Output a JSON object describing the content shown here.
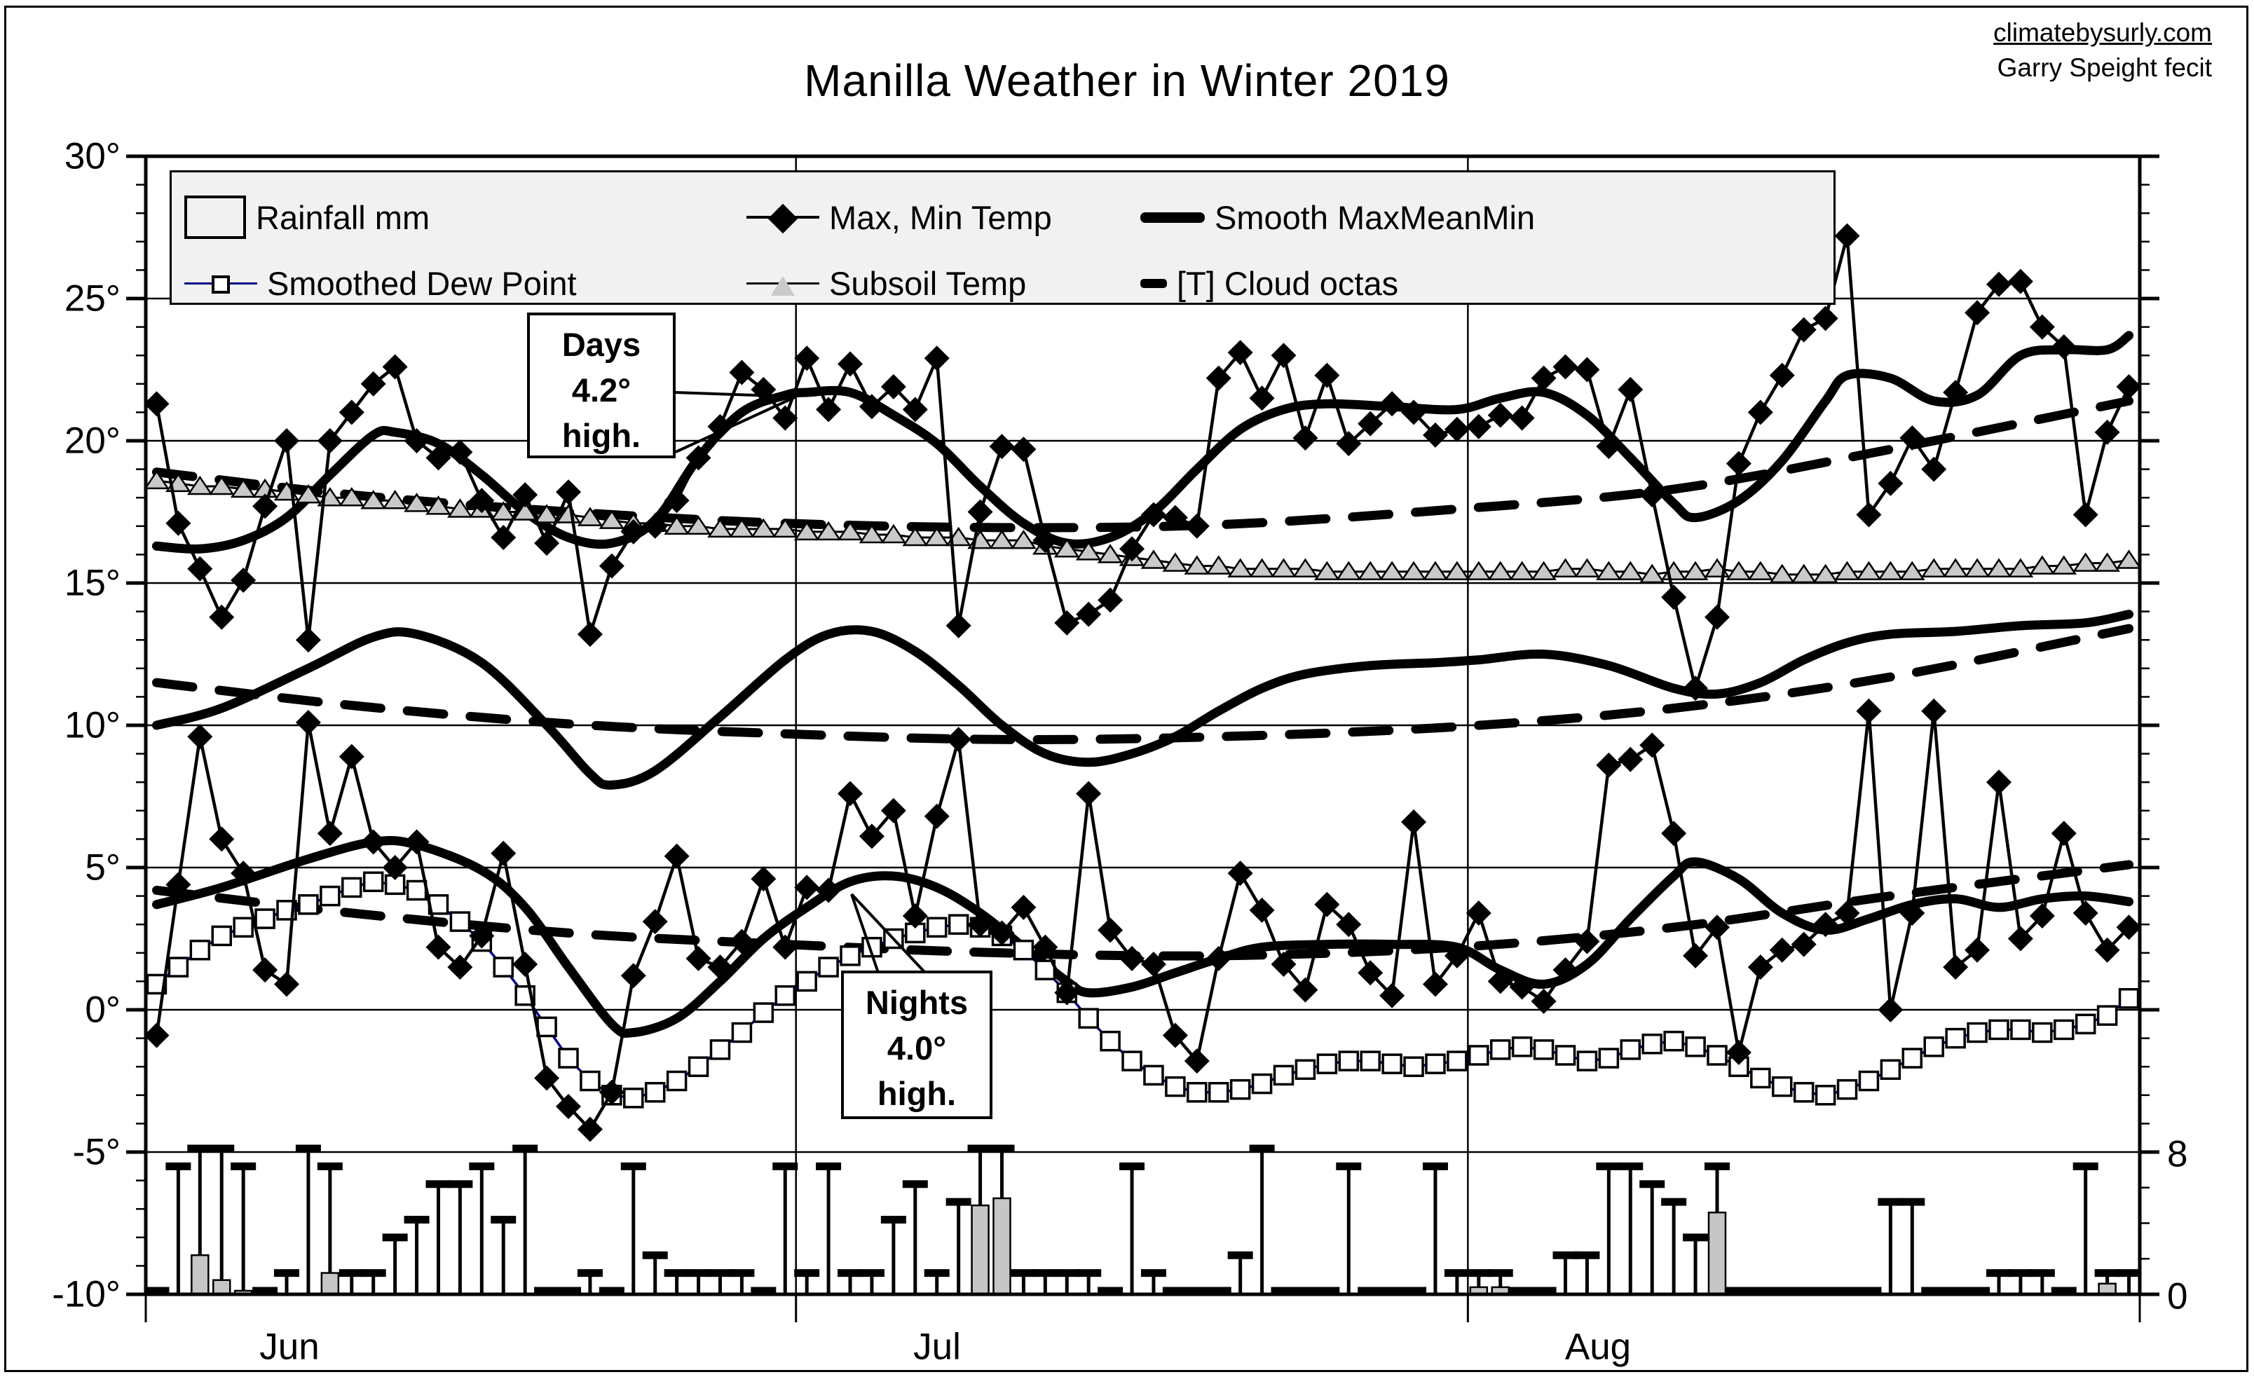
{
  "header": {
    "title": "Manilla Weather in Winter 2019",
    "site": "climatebysurly.com",
    "credit": "Garry Speight fecit"
  },
  "legend": {
    "bg_color": "#f1f1f1",
    "items": [
      {
        "label": "Rainfall mm",
        "marker": "rain-bar-swatch"
      },
      {
        "label": "Max, Min Temp",
        "marker": "diamond-on-line"
      },
      {
        "label": "Smooth  MaxMeanMin",
        "marker": "thick-line"
      },
      {
        "label": "Smoothed Dew Point",
        "marker": "open-square-on-line"
      },
      {
        "label": "Subsoil Temp",
        "marker": "triangle-on-line"
      },
      {
        "label": "[T] Cloud octas",
        "marker": "short-dash"
      }
    ]
  },
  "annotations": {
    "days": {
      "line1": "Days",
      "line2": "4.2°",
      "line3": "high."
    },
    "nights": {
      "line1": "Nights",
      "line2": "4.0°",
      "line3": "high."
    }
  },
  "colors": {
    "ink": "#000000",
    "rain_fill": "#c6c6c6",
    "subsoil_fill": "#c9c9c9",
    "dew_line": "#00008b",
    "legend_bg": "#f1f1f1"
  },
  "chart_data": {
    "type": "line",
    "title": "Manilla Weather in Winter 2019",
    "x_months": [
      "Jun",
      "Jul",
      "Aug"
    ],
    "days_per_month": [
      30,
      31,
      31
    ],
    "y_axis": {
      "unit": "°",
      "min": -10,
      "max": 30,
      "step": 5,
      "tick_labels": [
        "30°",
        "25°",
        "20°",
        "15°",
        "10°",
        "5°",
        "0°",
        "-5°",
        "-10°"
      ]
    },
    "right_axis": {
      "name": "cloud octas",
      "min": 0,
      "max": 8,
      "tick_labels": [
        "8",
        "0"
      ],
      "maps_to_left": {
        "octa0_deg": -10,
        "octa8_deg": -5
      }
    },
    "grid": "horizontal 5-deg lines, vertical month boundaries",
    "legend_position": "top inside plot",
    "series": {
      "max_temp": [
        21.3,
        17.1,
        15.5,
        13.8,
        15.1,
        17.7,
        20.0,
        13.0,
        20.0,
        21.0,
        22.0,
        22.6,
        20.0,
        19.4,
        19.6,
        17.9,
        16.6,
        18.1,
        16.4,
        18.2,
        13.2,
        15.6,
        16.8,
        17.0,
        17.9,
        19.4,
        20.5,
        22.4,
        21.8,
        20.8,
        22.9,
        21.1,
        22.7,
        21.2,
        21.9,
        21.1,
        22.9,
        13.5,
        17.5,
        19.8,
        19.7,
        16.5,
        13.6,
        13.9,
        14.4,
        16.2,
        17.4,
        17.3,
        17.0,
        22.2,
        23.1,
        21.5,
        23.0,
        20.1,
        22.3,
        19.9,
        20.6,
        21.3,
        21.0,
        20.2,
        20.4,
        20.5,
        20.9,
        20.8,
        22.2,
        22.6,
        22.5,
        19.8,
        21.8,
        18.1,
        14.5,
        11.3,
        13.8,
        19.2,
        21.0,
        22.3,
        23.9,
        24.3,
        27.2,
        17.4,
        18.5,
        20.1,
        19.0,
        21.7,
        24.5,
        25.5,
        25.6,
        24.0,
        23.3,
        17.4,
        20.3,
        21.9
      ],
      "min_temp": [
        -0.9,
        4.4,
        9.6,
        6.0,
        4.8,
        1.4,
        0.9,
        10.1,
        6.2,
        8.9,
        5.9,
        5.0,
        5.9,
        2.2,
        1.5,
        2.6,
        5.5,
        1.6,
        -2.4,
        -3.4,
        -4.2,
        -2.9,
        1.2,
        3.1,
        5.4,
        1.8,
        1.5,
        2.4,
        4.6,
        2.2,
        4.3,
        4.2,
        7.6,
        6.1,
        7.0,
        3.3,
        6.8,
        9.5,
        3.0,
        2.7,
        3.6,
        2.2,
        0.6,
        7.6,
        2.8,
        1.8,
        1.6,
        -0.9,
        -1.8,
        1.8,
        4.8,
        3.5,
        1.6,
        0.7,
        3.7,
        3.0,
        1.3,
        0.5,
        6.6,
        0.9,
        1.9,
        3.4,
        1.0,
        0.8,
        0.3,
        1.4,
        2.4,
        8.6,
        8.8,
        9.3,
        6.2,
        1.9,
        2.9,
        -1.5,
        1.5,
        2.1,
        2.3,
        3.0,
        3.4,
        10.5,
        0.0,
        3.4,
        10.5,
        1.5,
        2.1,
        8.0,
        2.5,
        3.3,
        6.2,
        3.4,
        2.1,
        2.9
      ],
      "smoothed_dew_point": [
        0.9,
        1.5,
        2.1,
        2.6,
        2.9,
        3.2,
        3.5,
        3.7,
        4.0,
        4.3,
        4.5,
        4.4,
        4.2,
        3.7,
        3.1,
        2.4,
        1.5,
        0.5,
        -0.6,
        -1.7,
        -2.5,
        -3.0,
        -3.1,
        -2.9,
        -2.5,
        -2.0,
        -1.4,
        -0.8,
        -0.1,
        0.5,
        1.0,
        1.5,
        1.9,
        2.2,
        2.5,
        2.7,
        2.9,
        3.0,
        2.9,
        2.6,
        2.1,
        1.4,
        0.6,
        -0.3,
        -1.1,
        -1.8,
        -2.3,
        -2.7,
        -2.9,
        -2.9,
        -2.8,
        -2.6,
        -2.3,
        -2.1,
        -1.9,
        -1.8,
        -1.8,
        -1.9,
        -2.0,
        -1.9,
        -1.8,
        -1.6,
        -1.4,
        -1.3,
        -1.4,
        -1.6,
        -1.8,
        -1.7,
        -1.4,
        -1.2,
        -1.1,
        -1.3,
        -1.6,
        -2.0,
        -2.4,
        -2.7,
        -2.9,
        -3.0,
        -2.8,
        -2.5,
        -2.1,
        -1.7,
        -1.3,
        -1.0,
        -0.8,
        -0.7,
        -0.7,
        -0.8,
        -0.7,
        -0.5,
        -0.2,
        0.4
      ],
      "subsoil_temp": [
        18.6,
        18.5,
        18.4,
        18.4,
        18.3,
        18.3,
        18.2,
        18.1,
        18.0,
        18.0,
        17.9,
        17.9,
        17.8,
        17.7,
        17.6,
        17.6,
        17.5,
        17.5,
        17.4,
        17.4,
        17.3,
        17.2,
        17.1,
        17.1,
        17.0,
        17.0,
        16.9,
        16.9,
        16.9,
        16.9,
        16.8,
        16.8,
        16.8,
        16.7,
        16.7,
        16.6,
        16.6,
        16.6,
        16.5,
        16.5,
        16.5,
        16.3,
        16.2,
        16.1,
        16.0,
        15.9,
        15.8,
        15.7,
        15.6,
        15.6,
        15.5,
        15.5,
        15.5,
        15.5,
        15.4,
        15.4,
        15.4,
        15.4,
        15.4,
        15.4,
        15.4,
        15.4,
        15.4,
        15.4,
        15.4,
        15.5,
        15.5,
        15.4,
        15.4,
        15.3,
        15.4,
        15.4,
        15.5,
        15.4,
        15.4,
        15.3,
        15.3,
        15.3,
        15.4,
        15.4,
        15.4,
        15.4,
        15.5,
        15.5,
        15.5,
        15.5,
        15.5,
        15.6,
        15.6,
        15.7,
        15.7,
        15.8
      ],
      "cloud_octas": [
        0,
        7,
        8,
        8,
        7,
        0,
        1,
        8,
        7,
        1,
        1,
        3,
        4,
        6,
        6,
        7,
        4,
        8,
        0,
        0,
        1,
        0,
        7,
        2,
        1,
        1,
        1,
        1,
        0,
        7,
        1,
        7,
        1,
        1,
        4,
        6,
        1,
        5,
        8,
        8,
        1,
        1,
        1,
        1,
        0,
        7,
        1,
        0,
        0,
        0,
        2,
        8,
        0,
        0,
        0,
        7,
        0,
        0,
        0,
        7,
        1,
        1,
        1,
        0,
        0,
        2,
        2,
        7,
        7,
        6,
        5,
        3,
        7,
        0,
        0,
        0,
        0,
        0,
        0,
        0,
        5,
        5,
        0,
        0,
        0,
        1,
        1,
        1,
        0,
        7,
        1,
        1
      ],
      "rainfall_mm": [
        0,
        0,
        11,
        4,
        1,
        0,
        0,
        0,
        6,
        0,
        0,
        0,
        0,
        0,
        0,
        0,
        0,
        0,
        0,
        0,
        0,
        0,
        0,
        0,
        0,
        0,
        0,
        0,
        0,
        0,
        0,
        0,
        0,
        0,
        0,
        0,
        0,
        0,
        25,
        27,
        0,
        0,
        0,
        0,
        0,
        0,
        0,
        0,
        0,
        0,
        0,
        0,
        0,
        0,
        0,
        0,
        0,
        0,
        0,
        0,
        0,
        2,
        2,
        0,
        0,
        0,
        0,
        0,
        0,
        0,
        0,
        0,
        23,
        0,
        0,
        0,
        0,
        0,
        0,
        0,
        0,
        0,
        0,
        0,
        0,
        0,
        0,
        0,
        0,
        0,
        3,
        0
      ],
      "smooth_max_points": [
        [
          1,
          16.3
        ],
        [
          3,
          16.2
        ],
        [
          5,
          16.5
        ],
        [
          7,
          17.3
        ],
        [
          9,
          18.8
        ],
        [
          11,
          20.2
        ],
        [
          12,
          20.3
        ],
        [
          14,
          19.9
        ],
        [
          16,
          18.8
        ],
        [
          18,
          17.5
        ],
        [
          20,
          16.6
        ],
        [
          22,
          16.4
        ],
        [
          24,
          17.2
        ],
        [
          26,
          19.4
        ],
        [
          28,
          21.0
        ],
        [
          30,
          21.6
        ],
        [
          31,
          21.7
        ],
        [
          33,
          21.7
        ],
        [
          35,
          20.9
        ],
        [
          37,
          19.9
        ],
        [
          39,
          18.4
        ],
        [
          41,
          17.1
        ],
        [
          43,
          16.4
        ],
        [
          45,
          16.6
        ],
        [
          47,
          17.5
        ],
        [
          49,
          19.0
        ],
        [
          51,
          20.4
        ],
        [
          53,
          21.1
        ],
        [
          55,
          21.3
        ],
        [
          58,
          21.2
        ],
        [
          61,
          21.1
        ],
        [
          63,
          21.5
        ],
        [
          65,
          21.7
        ],
        [
          67,
          20.9
        ],
        [
          69,
          19.4
        ],
        [
          71,
          17.8
        ],
        [
          72,
          17.3
        ],
        [
          74,
          17.9
        ],
        [
          76,
          19.3
        ],
        [
          78,
          21.4
        ],
        [
          79,
          22.3
        ],
        [
          81,
          22.2
        ],
        [
          83,
          21.4
        ],
        [
          85,
          21.6
        ],
        [
          87,
          23.0
        ],
        [
          89,
          23.2
        ],
        [
          91,
          23.2
        ],
        [
          92,
          23.7
        ]
      ],
      "smooth_mean_points": [
        [
          1,
          10.0
        ],
        [
          4,
          10.6
        ],
        [
          8,
          12.0
        ],
        [
          11,
          13.1
        ],
        [
          13,
          13.2
        ],
        [
          16,
          12.2
        ],
        [
          19,
          10.0
        ],
        [
          21,
          8.3
        ],
        [
          22,
          7.9
        ],
        [
          24,
          8.4
        ],
        [
          27,
          10.3
        ],
        [
          30,
          12.3
        ],
        [
          32,
          13.2
        ],
        [
          34,
          13.3
        ],
        [
          36,
          12.6
        ],
        [
          38,
          11.4
        ],
        [
          40,
          10.0
        ],
        [
          42,
          9.0
        ],
        [
          44,
          8.7
        ],
        [
          46,
          9.0
        ],
        [
          48,
          9.6
        ],
        [
          50,
          10.5
        ],
        [
          52,
          11.3
        ],
        [
          54,
          11.8
        ],
        [
          57,
          12.1
        ],
        [
          60,
          12.2
        ],
        [
          62,
          12.3
        ],
        [
          65,
          12.5
        ],
        [
          68,
          12.1
        ],
        [
          71,
          11.3
        ],
        [
          73,
          11.1
        ],
        [
          75,
          11.5
        ],
        [
          77,
          12.3
        ],
        [
          79,
          12.9
        ],
        [
          81,
          13.2
        ],
        [
          84,
          13.3
        ],
        [
          87,
          13.5
        ],
        [
          90,
          13.6
        ],
        [
          92,
          13.9
        ]
      ],
      "smooth_min_points": [
        [
          1,
          3.7
        ],
        [
          4,
          4.3
        ],
        [
          8,
          5.3
        ],
        [
          11,
          5.9
        ],
        [
          13,
          5.8
        ],
        [
          16,
          4.9
        ],
        [
          18,
          3.6
        ],
        [
          20,
          1.5
        ],
        [
          22,
          -0.5
        ],
        [
          23,
          -0.8
        ],
        [
          25,
          -0.3
        ],
        [
          27,
          1.0
        ],
        [
          29,
          2.5
        ],
        [
          31,
          3.6
        ],
        [
          33,
          4.5
        ],
        [
          35,
          4.7
        ],
        [
          37,
          4.3
        ],
        [
          39,
          3.4
        ],
        [
          41,
          2.2
        ],
        [
          43,
          1.0
        ],
        [
          44,
          0.6
        ],
        [
          46,
          0.8
        ],
        [
          48,
          1.3
        ],
        [
          50,
          1.8
        ],
        [
          52,
          2.2
        ],
        [
          55,
          2.3
        ],
        [
          58,
          2.3
        ],
        [
          61,
          2.2
        ],
        [
          63,
          1.4
        ],
        [
          65,
          0.9
        ],
        [
          67,
          1.6
        ],
        [
          69,
          3.2
        ],
        [
          71,
          4.7
        ],
        [
          72,
          5.2
        ],
        [
          74,
          4.6
        ],
        [
          76,
          3.4
        ],
        [
          78,
          2.8
        ],
        [
          80,
          3.2
        ],
        [
          82,
          3.7
        ],
        [
          84,
          3.9
        ],
        [
          86,
          3.6
        ],
        [
          88,
          3.9
        ],
        [
          90,
          4.0
        ],
        [
          92,
          3.8
        ]
      ],
      "normal_max_points": [
        [
          1,
          18.9
        ],
        [
          10,
          18.1
        ],
        [
          20,
          17.5
        ],
        [
          30,
          17.1
        ],
        [
          40,
          16.95
        ],
        [
          50,
          17.05
        ],
        [
          61,
          17.6
        ],
        [
          71,
          18.3
        ],
        [
          81,
          19.7
        ],
        [
          92,
          21.4
        ]
      ],
      "normal_mean_points": [
        [
          1,
          11.5
        ],
        [
          10,
          10.7
        ],
        [
          20,
          10.05
        ],
        [
          30,
          9.7
        ],
        [
          40,
          9.5
        ],
        [
          50,
          9.6
        ],
        [
          61,
          9.95
        ],
        [
          71,
          10.6
        ],
        [
          81,
          11.7
        ],
        [
          92,
          13.4
        ]
      ],
      "normal_min_points": [
        [
          1,
          4.2
        ],
        [
          10,
          3.4
        ],
        [
          20,
          2.7
        ],
        [
          30,
          2.3
        ],
        [
          40,
          2.0
        ],
        [
          50,
          1.9
        ],
        [
          61,
          2.2
        ],
        [
          71,
          2.9
        ],
        [
          81,
          4.0
        ],
        [
          92,
          5.1
        ]
      ]
    },
    "annotations": [
      {
        "text": "Days 4.2° high.",
        "points_at": "smooth max vs normal max gap near Jul 1"
      },
      {
        "text": "Nights 4.0° high.",
        "points_at": "smooth min vs normal min gap near Jul 2"
      }
    ]
  }
}
